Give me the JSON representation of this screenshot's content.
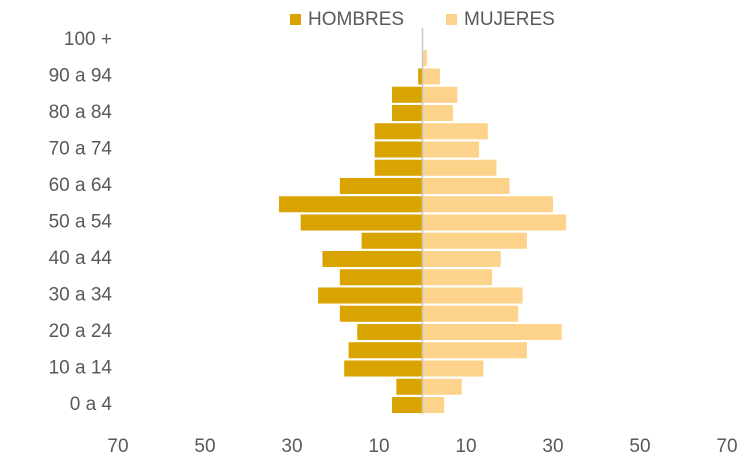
{
  "chart_data": {
    "type": "bar",
    "orientation": "horizontal",
    "legend": "top",
    "categories": [
      "0 a 4",
      null,
      "10 a 14",
      null,
      "20 a 24",
      null,
      "30 a 34",
      null,
      "40 a 44",
      null,
      "50 a 54",
      null,
      "60 a 64",
      null,
      "70 a 74",
      null,
      "80 a 84",
      null,
      "90 a 94",
      null,
      "100 +"
    ],
    "series": [
      {
        "name": "HOMBRES",
        "color": "#d9a300",
        "values": [
          -7,
          -6,
          -18,
          -17,
          -15,
          -19,
          -24,
          -19,
          -23,
          -14,
          -28,
          -33,
          -19,
          -11,
          -11,
          -11,
          -7,
          -7,
          -1,
          0,
          0
        ]
      },
      {
        "name": "MUJERES",
        "color": "#fdd28a",
        "values": [
          5,
          9,
          14,
          24,
          32,
          22,
          23,
          16,
          18,
          24,
          33,
          30,
          20,
          17,
          13,
          15,
          7,
          8,
          4,
          1,
          0
        ]
      }
    ],
    "xlim": [
      -70,
      70
    ],
    "xticks": [
      {
        "value": -70,
        "label": "70"
      },
      {
        "value": -50,
        "label": "50"
      },
      {
        "value": -30,
        "label": "30"
      },
      {
        "value": -10,
        "label": "10"
      },
      10,
      30,
      50,
      70
    ]
  }
}
